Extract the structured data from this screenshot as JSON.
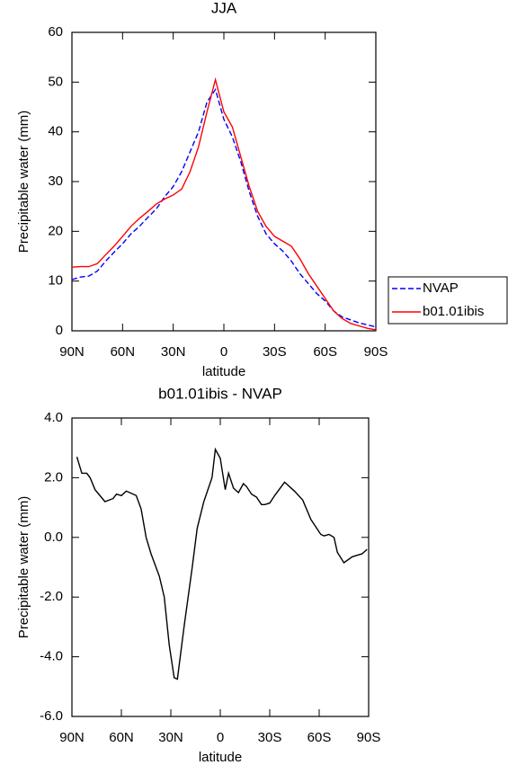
{
  "chart_data": [
    {
      "type": "line",
      "title": "JJA",
      "xlabel": "latitude",
      "ylabel": "Precipitable water (mm)",
      "x": [
        90,
        85,
        80,
        75,
        70,
        65,
        60,
        55,
        50,
        45,
        40,
        35,
        30,
        25,
        20,
        15,
        10,
        5,
        0,
        -5,
        -10,
        -15,
        -20,
        -25,
        -30,
        -35,
        -40,
        -45,
        -50,
        -55,
        -60,
        -65,
        -70,
        -75,
        -80,
        -85,
        -90
      ],
      "series": [
        {
          "name": "NVAP",
          "color": "#0000ff",
          "line_style": "dashed",
          "values": [
            10.3,
            10.8,
            11,
            12,
            14,
            15.8,
            17.5,
            19.5,
            21,
            22.8,
            24.5,
            27,
            29,
            32,
            36,
            40,
            46,
            48.5,
            42.5,
            39,
            34,
            28,
            23,
            19.5,
            17.5,
            16,
            14,
            11.5,
            9.5,
            7.5,
            6,
            4,
            2.8,
            2.2,
            1.6,
            1.2,
            0.8
          ]
        },
        {
          "name": "b01.01ibis",
          "color": "#ff0000",
          "line_style": "solid",
          "values": [
            12.8,
            12.9,
            12.9,
            13.5,
            15.3,
            17,
            19,
            21,
            22.6,
            24,
            25.5,
            26.5,
            27.3,
            28.5,
            32,
            37,
            44,
            50.5,
            44,
            41,
            35,
            29,
            24,
            21,
            19,
            18,
            17,
            14.5,
            11.5,
            9,
            6.5,
            4,
            2.5,
            1.5,
            1,
            0.5,
            0.2
          ]
        }
      ],
      "xlim": [
        90,
        -90
      ],
      "xticks": [
        {
          "value": 90,
          "label": "90N"
        },
        {
          "value": 60,
          "label": "60N"
        },
        {
          "value": 30,
          "label": "30N"
        },
        0,
        {
          "value": -30,
          "label": "30S"
        },
        {
          "value": -60,
          "label": "60S"
        },
        {
          "value": -90,
          "label": "90S"
        }
      ],
      "ylim": [
        0,
        60
      ],
      "yticks": [
        0,
        10,
        20,
        30,
        40,
        50,
        60
      ],
      "legend": "right"
    },
    {
      "type": "line",
      "title": "b01.01ibis - NVAP",
      "xlabel": "latitude",
      "ylabel": "Precipitable water (mm)",
      "x": [
        87,
        84,
        81,
        79,
        76,
        70,
        65,
        63,
        60,
        57,
        51,
        48,
        45,
        42,
        37,
        34,
        31,
        28,
        26,
        22,
        17,
        14,
        10,
        5,
        3,
        0,
        -3,
        -5,
        -8,
        -11,
        -14,
        -16,
        -19,
        -22,
        -25,
        -27,
        -30,
        -33,
        -39,
        -45,
        -50,
        -55,
        -61,
        -63,
        -66,
        -69,
        -71,
        -75,
        -80,
        -83,
        -86,
        -89
      ],
      "series": [
        {
          "color": "#000000",
          "line_style": "solid",
          "values": [
            2.7,
            2.15,
            2.15,
            2.0,
            1.6,
            1.2,
            1.3,
            1.45,
            1.4,
            1.55,
            1.4,
            0.95,
            0.0,
            -0.55,
            -1.3,
            -2.0,
            -3.6,
            -4.7,
            -4.75,
            -3.0,
            -1.0,
            0.3,
            1.2,
            2.0,
            2.95,
            2.65,
            1.6,
            2.15,
            1.65,
            1.5,
            1.8,
            1.7,
            1.45,
            1.35,
            1.1,
            1.1,
            1.15,
            1.4,
            1.85,
            1.55,
            1.25,
            0.6,
            0.1,
            0.05,
            0.1,
            0.0,
            -0.5,
            -0.85,
            -0.65,
            -0.6,
            -0.55,
            -0.4
          ]
        }
      ],
      "xlim": [
        90,
        -90
      ],
      "xticks": [
        {
          "value": 90,
          "label": "90N"
        },
        {
          "value": 60,
          "label": "60N"
        },
        {
          "value": 30,
          "label": "30N"
        },
        0,
        {
          "value": -30,
          "label": "30S"
        },
        {
          "value": -60,
          "label": "60S"
        },
        {
          "value": -90,
          "label": "90S"
        }
      ],
      "ylim": [
        -6,
        4
      ],
      "yticks": [
        {
          "value": -6,
          "label": "-6.0"
        },
        {
          "value": -4,
          "label": "-4.0"
        },
        {
          "value": -2,
          "label": "-2.0"
        },
        {
          "value": 0,
          "label": "0.0"
        },
        {
          "value": 2,
          "label": "2.0"
        },
        {
          "value": 4,
          "label": "4.0"
        }
      ]
    }
  ]
}
